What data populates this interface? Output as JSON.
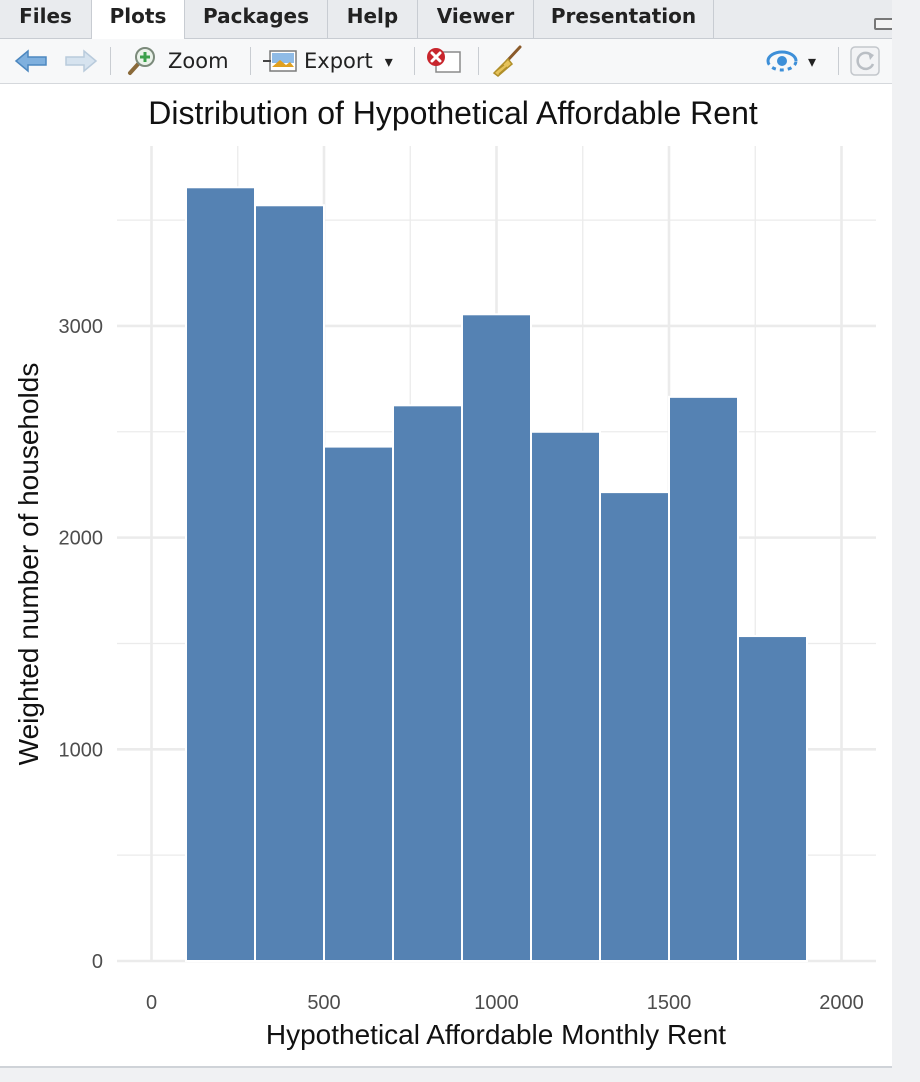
{
  "tabs": [
    {
      "label": "Files"
    },
    {
      "label": "Plots"
    },
    {
      "label": "Packages"
    },
    {
      "label": "Help"
    },
    {
      "label": "Viewer"
    },
    {
      "label": "Presentation"
    }
  ],
  "active_tab": "Plots",
  "toolbar": {
    "zoom_label": "Zoom",
    "export_label": "Export",
    "dropdown_glyph": "▾"
  },
  "colors": {
    "bar": "#5582b3",
    "grid": "#ebebeb"
  },
  "chart_data": {
    "type": "bar",
    "title": "Distribution of Hypothetical Affordable Rent",
    "xlabel": "Hypothetical Affordable Monthly Rent",
    "ylabel": "Weighted number of households",
    "bin_width": 200,
    "x": [
      200,
      400,
      600,
      800,
      1000,
      1200,
      1400,
      1600,
      1800
    ],
    "values": [
      3655,
      3570,
      2430,
      2625,
      3055,
      2500,
      2215,
      2665,
      1535
    ],
    "xlim": [
      -100,
      2100
    ],
    "ylim": [
      0,
      3850
    ],
    "xticks": [
      0,
      500,
      1000,
      1500,
      2000
    ],
    "yticks": [
      0,
      1000,
      2000,
      3000
    ],
    "xtick_labels": [
      "0",
      "500",
      "1000",
      "1500",
      "2000"
    ],
    "ytick_labels": [
      "0",
      "1000",
      "2000",
      "3000"
    ],
    "grid": true,
    "legend": "none"
  }
}
